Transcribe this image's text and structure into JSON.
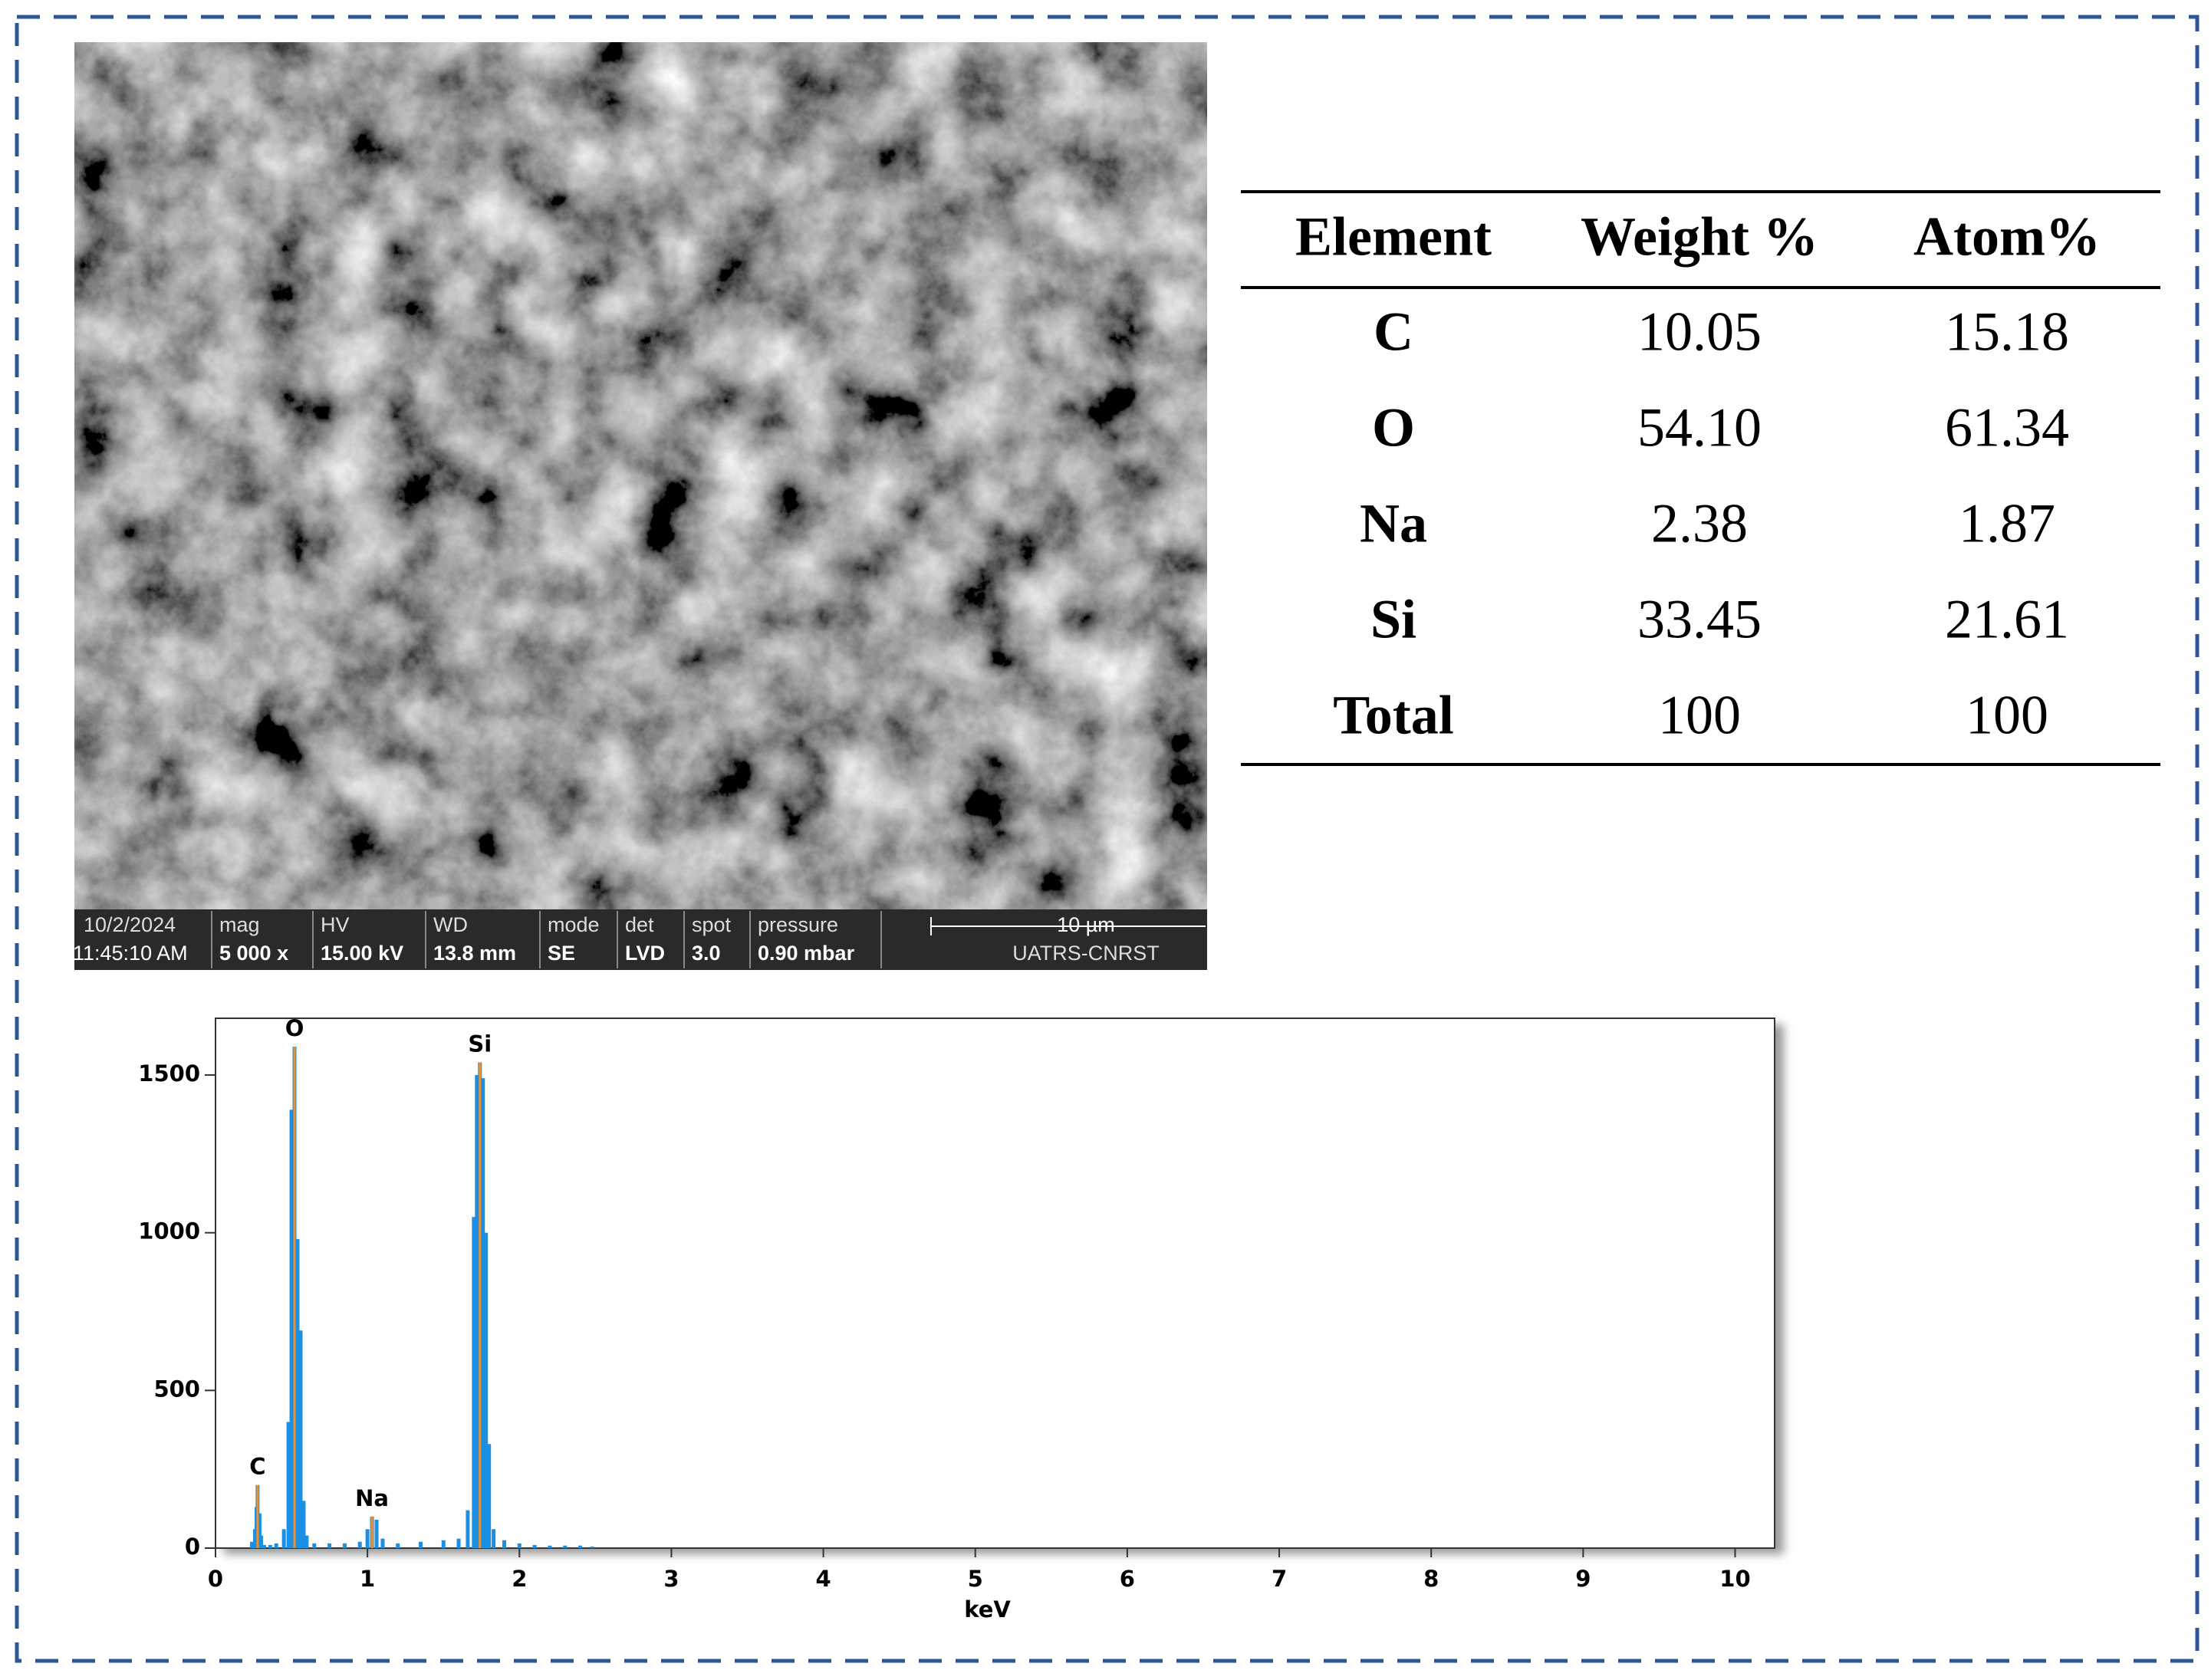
{
  "sem_info": {
    "fields": [
      {
        "label": "10/2/2024",
        "value": "11:45:10 AM"
      },
      {
        "label": "mag",
        "value": "5 000 x"
      },
      {
        "label": "HV",
        "value": "15.00 kV"
      },
      {
        "label": "WD",
        "value": "13.8 mm"
      },
      {
        "label": "mode",
        "value": "SE"
      },
      {
        "label": "det",
        "value": "LVD"
      },
      {
        "label": "spot",
        "value": "3.0"
      },
      {
        "label": "pressure",
        "value": "0.90 mbar"
      }
    ],
    "scale_bar": "10 µm",
    "lab": "UATRS-CNRST"
  },
  "table": {
    "header": [
      "Element",
      "Weight %",
      "Atom%"
    ],
    "rows": [
      [
        "C",
        "10.05",
        "15.18"
      ],
      [
        "O",
        "54.10",
        "61.34"
      ],
      [
        "Na",
        "2.38",
        "1.87"
      ],
      [
        "Si",
        "33.45",
        "21.61"
      ],
      [
        "Total",
        "100",
        "100"
      ]
    ]
  },
  "chart_data": {
    "type": "bar",
    "xlabel": "keV",
    "color": "#1a8fe3",
    "marker_color": "#f0902a",
    "x": [
      0.24,
      0.26,
      0.27,
      0.277,
      0.29,
      0.3,
      0.32,
      0.36,
      0.4,
      0.45,
      0.48,
      0.5,
      0.52,
      0.54,
      0.56,
      0.58,
      0.6,
      0.65,
      0.75,
      0.85,
      0.95,
      1.0,
      1.03,
      1.06,
      1.1,
      1.2,
      1.35,
      1.5,
      1.6,
      1.66,
      1.7,
      1.72,
      1.74,
      1.76,
      1.78,
      1.8,
      1.83,
      1.9,
      2.0,
      2.1,
      2.2,
      2.3,
      2.4,
      2.48
    ],
    "values": [
      20,
      60,
      130,
      200,
      110,
      40,
      10,
      10,
      15,
      60,
      400,
      1390,
      1590,
      980,
      690,
      150,
      40,
      15,
      15,
      15,
      20,
      60,
      100,
      90,
      30,
      15,
      20,
      25,
      30,
      120,
      1050,
      1500,
      1540,
      1490,
      1000,
      330,
      60,
      25,
      15,
      10,
      8,
      8,
      8,
      5
    ],
    "peak_labels": [
      {
        "label": "C",
        "x": 0.277
      },
      {
        "label": "O",
        "x": 0.52
      },
      {
        "label": "Na",
        "x": 1.03
      },
      {
        "label": "Si",
        "x": 1.74
      }
    ],
    "xlim": [
      0,
      10.26
    ],
    "ylim": [
      0,
      1680
    ],
    "xticks": [
      0,
      1,
      2,
      3,
      4,
      5,
      6,
      7,
      8,
      9,
      10
    ],
    "yticks": [
      0,
      500,
      1000,
      1500
    ]
  }
}
